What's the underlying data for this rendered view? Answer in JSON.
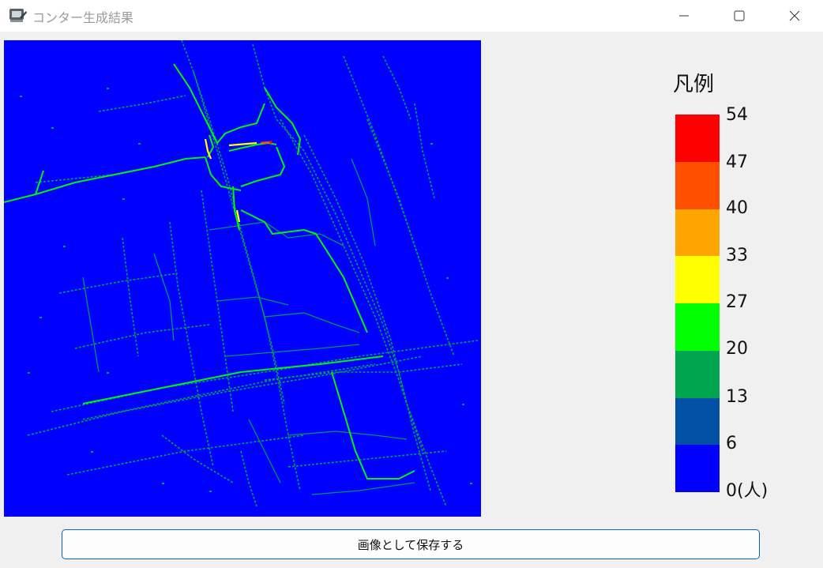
{
  "window": {
    "title": "コンター生成結果"
  },
  "legend": {
    "title": "凡例",
    "colors": [
      "#ff0000",
      "#ff5000",
      "#ffa500",
      "#ffff00",
      "#00ff00",
      "#00a550",
      "#0050a5",
      "#0000ff"
    ],
    "labels": [
      "54",
      "47",
      "40",
      "33",
      "27",
      "20",
      "13",
      "6",
      "0(人)"
    ]
  },
  "map": {
    "background_color": "#0000ff"
  },
  "save_button": {
    "label": "画像として保存する"
  }
}
